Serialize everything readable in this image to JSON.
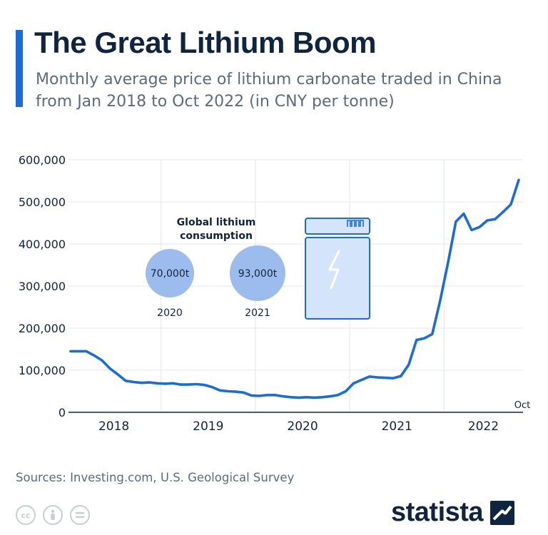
{
  "header": {
    "title": "The Great Lithium Boom",
    "subtitle": "Monthly average price of lithium carbonate traded in China from Jan 2018 to Oct 2022 (in CNY per tonne)"
  },
  "chart_data": {
    "type": "line",
    "title": "The Great Lithium Boom",
    "subtitle": "Monthly average price of lithium carbonate traded in China from Jan 2018 to Oct 2022 (in CNY per tonne)",
    "xlabel": "",
    "ylabel": "",
    "ylim": [
      0,
      600000
    ],
    "yticks": [
      0,
      100000,
      200000,
      300000,
      400000,
      500000,
      600000
    ],
    "ytick_labels": [
      "0",
      "100,000",
      "200,000",
      "300,000",
      "400,000",
      "500,000",
      "600,000"
    ],
    "xtick_labels": [
      "2018",
      "2019",
      "2020",
      "2021",
      "2022"
    ],
    "end_label": "Oct",
    "grid": true,
    "line_color": "#1a6cd8",
    "series": [
      {
        "x": [
          "Jan 2018",
          "Feb 2018",
          "Mar 2018",
          "Apr 2018",
          "May 2018",
          "Jun 2018",
          "Jul 2018",
          "Aug 2018",
          "Sep 2018",
          "Oct 2018",
          "Nov 2018",
          "Dec 2018",
          "Jan 2019",
          "Feb 2019",
          "Mar 2019",
          "Apr 2019",
          "May 2019",
          "Jun 2019",
          "Jul 2019",
          "Aug 2019",
          "Sep 2019",
          "Oct 2019",
          "Nov 2019",
          "Dec 2019",
          "Jan 2020",
          "Feb 2020",
          "Mar 2020",
          "Apr 2020",
          "May 2020",
          "Jun 2020",
          "Jul 2020",
          "Aug 2020",
          "Sep 2020",
          "Oct 2020",
          "Nov 2020",
          "Dec 2020",
          "Jan 2021",
          "Feb 2021",
          "Mar 2021",
          "Apr 2021",
          "May 2021",
          "Jun 2021",
          "Jul 2021",
          "Aug 2021",
          "Sep 2021",
          "Oct 2021",
          "Nov 2021",
          "Dec 2021",
          "Jan 2022",
          "Feb 2022",
          "Mar 2022",
          "Apr 2022",
          "May 2022",
          "Jun 2022",
          "Jul 2022",
          "Aug 2022",
          "Sep 2022",
          "Oct 2022"
        ],
        "values": [
          145000,
          145000,
          145000,
          135000,
          123000,
          104000,
          90000,
          75000,
          72000,
          70000,
          71000,
          69000,
          68000,
          69000,
          66000,
          66000,
          67000,
          65000,
          60000,
          52000,
          50000,
          49000,
          47000,
          40000,
          39000,
          41000,
          41000,
          38000,
          36000,
          35000,
          36000,
          35000,
          36000,
          38000,
          41000,
          50000,
          69000,
          77000,
          85000,
          83000,
          82000,
          81000,
          86000,
          113000,
          172000,
          176000,
          186000,
          265000,
          355000,
          453000,
          472000,
          433000,
          440000,
          456000,
          459000,
          476000,
          494000,
          552000
        ]
      }
    ]
  },
  "infographic": {
    "heading": "Global lithium consumption",
    "bubbles": [
      {
        "value_label": "70,000t",
        "year": "2020",
        "value": 70000,
        "color": "#9bbcec"
      },
      {
        "value_label": "93,000t",
        "year": "2021",
        "value": 93000,
        "color": "#9bbcec"
      }
    ],
    "battery_icon": "battery-lightning-icon"
  },
  "footer": {
    "source": "Sources: Investing.com, U.S. Geological Survey",
    "license_icons": [
      "creative-commons-icon",
      "attribution-icon",
      "no-derivatives-icon"
    ],
    "brand": "statista",
    "brand_icon": "statista-logo-icon"
  }
}
